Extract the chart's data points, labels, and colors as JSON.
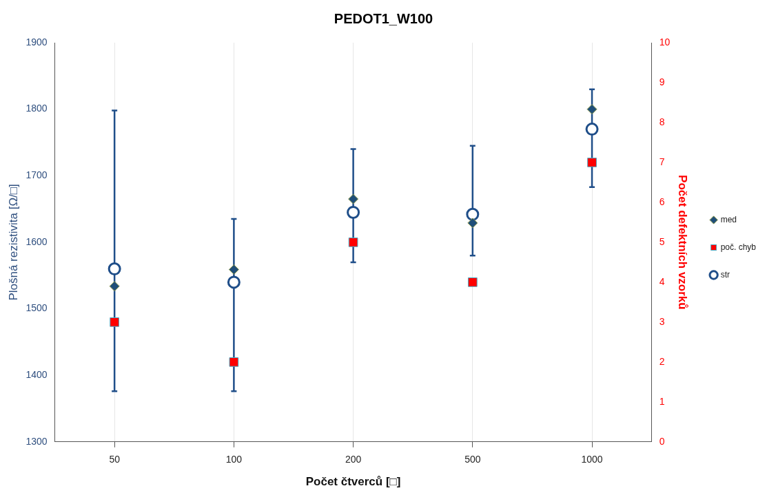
{
  "chart_data": {
    "type": "scatter",
    "title": "PEDOT1_W100",
    "xlabel": "Počet čtverců [□]",
    "ylabel": "Plošná rezistivita [Ω/□]",
    "y2label": "Počet defektních vzorků",
    "categories": [
      "50",
      "100",
      "200",
      "500",
      "1000"
    ],
    "series": [
      {
        "name": "str",
        "color": "#1f4e89",
        "marker": "circle",
        "values": [
          1560,
          1540,
          1645,
          1642,
          1770
        ],
        "errors": [
          [
            1376,
            1798
          ],
          [
            1376,
            1635
          ],
          [
            1570,
            1740
          ],
          [
            1580,
            1745
          ],
          [
            1683,
            1830
          ]
        ]
      },
      {
        "name": "med",
        "color": "#1f4e79",
        "marker": "diamond",
        "values": [
          1534,
          1559,
          1665,
          1629,
          1800
        ]
      },
      {
        "name": "poč. chyb",
        "color": "#ff0000",
        "marker": "square",
        "axis": "y2",
        "values": [
          3,
          2,
          5,
          4,
          7
        ]
      }
    ],
    "ylim": [
      1300,
      1900
    ],
    "yticks": [
      1300,
      1400,
      1500,
      1600,
      1700,
      1800,
      1900
    ],
    "y2lim": [
      0,
      10
    ],
    "y2ticks": [
      0,
      1,
      2,
      3,
      4,
      5,
      6,
      7,
      8,
      9,
      10
    ],
    "grid": "x",
    "legend": "right"
  }
}
